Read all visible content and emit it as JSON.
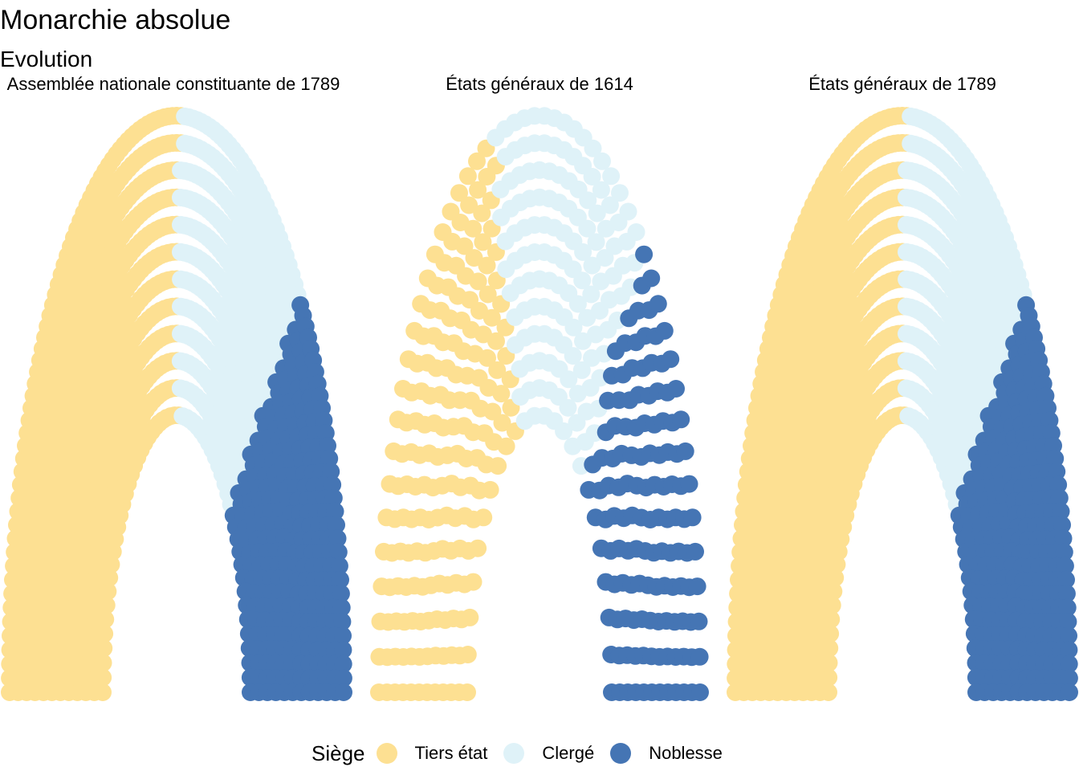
{
  "title": "Monarchie absolue",
  "subtitle": "Evolution",
  "legend": {
    "title": "Siège",
    "items": [
      {
        "label": "Tiers état",
        "color": "#FDE092"
      },
      {
        "label": "Clergé",
        "color": "#DFF2F8"
      },
      {
        "label": "Noblesse",
        "color": "#4575B4"
      }
    ]
  },
  "chart_data": [
    {
      "type": "parliament",
      "title": "Assemblée nationale constituante de 1789",
      "series": [
        {
          "name": "Tiers état",
          "value": 578
        },
        {
          "name": "Clergé",
          "value": 291
        },
        {
          "name": "Noblesse",
          "value": 270
        }
      ]
    },
    {
      "type": "parliament",
      "title": "États généraux de 1614",
      "series": [
        {
          "name": "Tiers état",
          "value": 187
        },
        {
          "name": "Clergé",
          "value": 140
        },
        {
          "name": "Noblesse",
          "value": 132
        }
      ]
    },
    {
      "type": "parliament",
      "title": "États généraux de 1789",
      "series": [
        {
          "name": "Tiers état",
          "value": 578
        },
        {
          "name": "Clergé",
          "value": 291
        },
        {
          "name": "Noblesse",
          "value": 270
        }
      ]
    }
  ]
}
